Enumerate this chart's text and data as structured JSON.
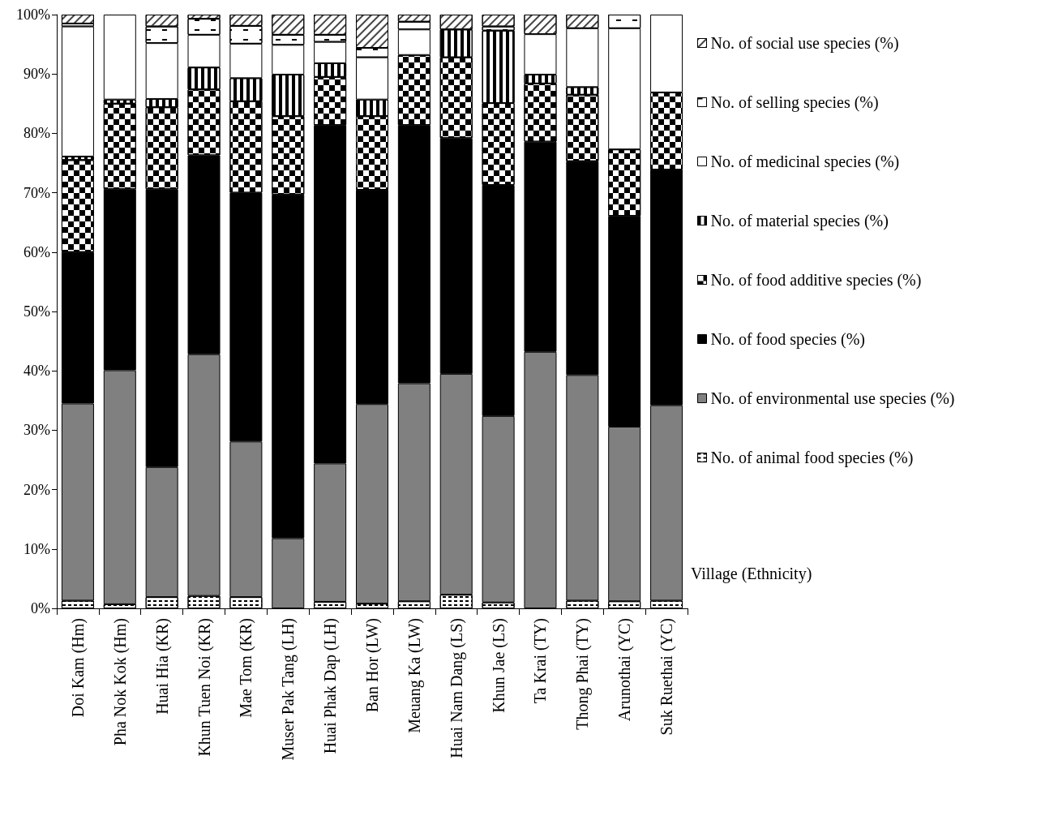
{
  "chart_data": {
    "type": "bar",
    "stacked": true,
    "xlabel": "Village (Ethnicity)",
    "categories": [
      "Doi Kam (Hm)",
      "Pha Nok Kok (Hm)",
      "Huai Hia (KR)",
      "Khun Tuen Noi (KR)",
      "Mae Tom (KR)",
      "Muser Pak Tang (LH)",
      "Huai Phak Dap (LH)",
      "Ban Hor (LW)",
      "Meuang Ka (LW)",
      "Huai Nam Dang (LS)",
      "Khun Jae (LS)",
      "Ta Krai (TY)",
      "Thong Phai (TY)",
      "Arunothai (YC)",
      "Suk Ruethai (YC)"
    ],
    "series": [
      {
        "name": "No. of animal food species (%)",
        "color": "#ffffff",
        "values": [
          1.3,
          0.7,
          1.9,
          2.1,
          1.9,
          0,
          1.1,
          0.8,
          1.2,
          2.3,
          1.0,
          0,
          1.3,
          1.2,
          1.3
        ]
      },
      {
        "name": "No. of environmental use species (%)",
        "color": "#808080",
        "values": [
          33.2,
          39.4,
          21.9,
          40.7,
          26.2,
          11.8,
          23.3,
          33.6,
          36.7,
          37.2,
          31.4,
          43.2,
          38.0,
          29.4,
          32.9
        ]
      },
      {
        "name": "No. of food species (%)",
        "color": "#000000",
        "values": [
          25.5,
          30.5,
          46.8,
          33.5,
          41.9,
          57.9,
          57.0,
          36.1,
          43.5,
          39.7,
          38.9,
          35.4,
          36.0,
          35.5,
          39.7
        ]
      },
      {
        "name": "No. of food additive species (%)",
        "color": "#ffffff",
        "values": [
          15.5,
          14.4,
          13.8,
          11.1,
          15.4,
          13.2,
          8.1,
          12.4,
          11.8,
          13.6,
          13.8,
          9.8,
          11.2,
          11.2,
          13.0
        ]
      },
      {
        "name": "No. of material species (%)",
        "color": "#ffffff",
        "values": [
          0.6,
          0.7,
          1.4,
          3.7,
          3.9,
          7.0,
          2.3,
          2.8,
          0,
          4.7,
          12.2,
          1.5,
          1.3,
          0,
          0
        ]
      },
      {
        "name": "No. of medicinal species (%)",
        "color": "#ffffff",
        "values": [
          21.9,
          14.3,
          9.4,
          5.5,
          5.8,
          5.0,
          3.6,
          7.1,
          4.3,
          0,
          0,
          6.8,
          9.9,
          20.4,
          13.1
        ]
      },
      {
        "name": "No. of selling species (%)",
        "color": "#ffffff",
        "values": [
          0.5,
          0,
          2.8,
          2.7,
          3.0,
          1.7,
          1.2,
          1.6,
          1.3,
          0,
          0.7,
          0,
          0,
          2.3,
          0
        ]
      },
      {
        "name": "No. of social use species (%)",
        "color": "#ffffff",
        "values": [
          1.5,
          0,
          2.0,
          0.7,
          1.9,
          3.4,
          3.4,
          5.6,
          1.2,
          2.5,
          2.0,
          3.3,
          2.3,
          0,
          0
        ]
      }
    ],
    "ylim": [
      0,
      100
    ],
    "yticks": [
      {
        "value": 0,
        "label": "0%"
      },
      {
        "value": 10,
        "label": "10%"
      },
      {
        "value": 20,
        "label": "20%"
      },
      {
        "value": 30,
        "label": "30%"
      },
      {
        "value": 40,
        "label": "40%"
      },
      {
        "value": 50,
        "label": "50%"
      },
      {
        "value": 60,
        "label": "60%"
      },
      {
        "value": 70,
        "label": "70%"
      },
      {
        "value": 80,
        "label": "80%"
      },
      {
        "value": 90,
        "label": "90%"
      },
      {
        "value": 100,
        "label": "100%"
      }
    ],
    "grid": false,
    "legend": "right"
  }
}
